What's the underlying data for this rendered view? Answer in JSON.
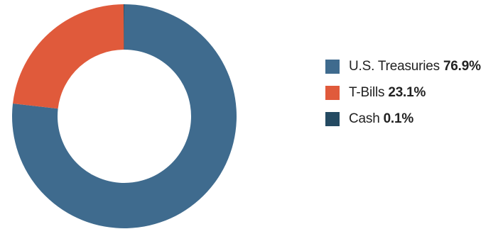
{
  "chart_data": {
    "type": "pie",
    "donut": true,
    "categories": [
      "U.S. Treasuries",
      "T-Bills",
      "Cash"
    ],
    "values": [
      76.9,
      23.1,
      0.1
    ],
    "value_labels": [
      "76.9%",
      "23.1%",
      "0.1%"
    ],
    "colors": [
      "#3f6b8e",
      "#e05a3b",
      "#244a62"
    ],
    "legend_position": "right",
    "start_angle": "top",
    "direction": "clockwise"
  }
}
